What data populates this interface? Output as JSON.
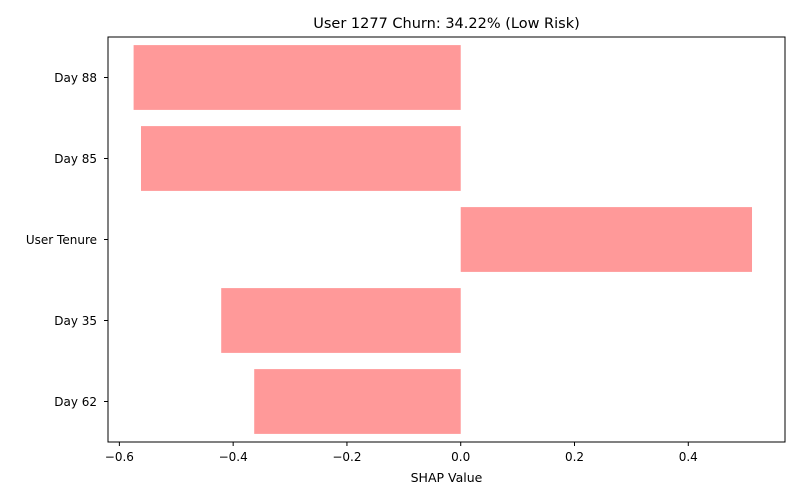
{
  "chart_data": {
    "type": "bar",
    "orientation": "horizontal",
    "title": "User 1277 Churn: 34.22% (Low Risk)",
    "xlabel": "SHAP Value",
    "ylabel": "",
    "categories": [
      "Day 88",
      "Day 85",
      "User Tenure",
      "Day 35",
      "Day 62"
    ],
    "values": [
      -0.575,
      -0.562,
      0.512,
      -0.421,
      -0.363
    ],
    "xlim": [
      -0.62,
      0.57
    ],
    "xticks": [
      -0.6,
      -0.4,
      -0.2,
      0.0,
      0.2,
      0.4
    ],
    "xtick_labels": [
      "−0.6",
      "−0.4",
      "−0.2",
      "0.0",
      "0.2",
      "0.4"
    ],
    "bar_color": "#ff9999",
    "grid": false,
    "legend": "none"
  }
}
